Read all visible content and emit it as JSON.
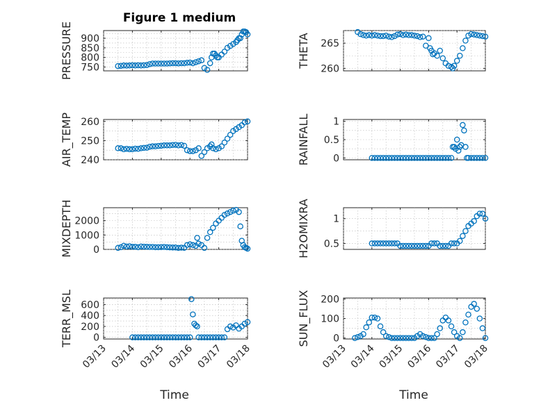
{
  "figure_title": "Figure 1 medium",
  "x_axis_label": "Time",
  "marker_color": "#0072BD",
  "chart_data": [
    {
      "type": "scatter",
      "ylabel": "PRESSURE",
      "title": "Figure 1 medium",
      "ylim": [
        730,
        940
      ],
      "yticks": [
        750,
        800,
        850,
        900
      ],
      "xlim": [
        0,
        5
      ],
      "x_tick_labels": [
        "03/13",
        "03/14",
        "03/15",
        "03/16",
        "03/17",
        "03/18"
      ],
      "xtick_labels_visible": false,
      "x": [
        0.5,
        0.6,
        0.7,
        0.8,
        0.9,
        1.0,
        1.1,
        1.2,
        1.3,
        1.4,
        1.5,
        1.6,
        1.7,
        1.8,
        1.9,
        2.0,
        2.1,
        2.2,
        2.3,
        2.4,
        2.5,
        2.6,
        2.7,
        2.8,
        2.9,
        3.0,
        3.1,
        3.2,
        3.3,
        3.4,
        3.5,
        3.6,
        3.7,
        3.75,
        3.8,
        3.85,
        3.9,
        3.95,
        4.0,
        4.1,
        4.2,
        4.3,
        4.4,
        4.5,
        4.6,
        4.65,
        4.7,
        4.75,
        4.8,
        4.85,
        4.9,
        4.95,
        5.0
      ],
      "y": [
        755,
        756,
        758,
        757,
        758,
        759,
        758,
        759,
        758,
        759,
        760,
        765,
        768,
        768,
        768,
        768,
        768,
        768,
        769,
        770,
        770,
        769,
        770,
        770,
        772,
        773,
        770,
        775,
        780,
        785,
        745,
        735,
        770,
        800,
        820,
        820,
        810,
        800,
        800,
        815,
        830,
        850,
        860,
        870,
        880,
        890,
        900,
        900,
        920,
        935,
        935,
        932,
        920
      ]
    },
    {
      "type": "scatter",
      "ylabel": "THETA",
      "ylim": [
        259.5,
        267.5
      ],
      "yticks": [
        260,
        265
      ],
      "xlim": [
        0,
        5
      ],
      "x_tick_labels": [
        "03/13",
        "03/14",
        "03/15",
        "03/16",
        "03/17",
        "03/18"
      ],
      "xtick_labels_visible": false,
      "x": [
        0.5,
        0.6,
        0.7,
        0.8,
        0.9,
        1.0,
        1.1,
        1.2,
        1.3,
        1.4,
        1.5,
        1.6,
        1.7,
        1.8,
        1.9,
        2.0,
        2.1,
        2.2,
        2.3,
        2.4,
        2.5,
        2.6,
        2.7,
        2.8,
        2.9,
        3.0,
        3.05,
        3.1,
        3.15,
        3.2,
        3.3,
        3.4,
        3.5,
        3.6,
        3.7,
        3.8,
        3.85,
        3.9,
        4.0,
        4.1,
        4.2,
        4.3,
        4.4,
        4.5,
        4.6,
        4.7,
        4.8,
        4.9,
        5.0
      ],
      "y": [
        267.2,
        266.8,
        266.6,
        266.5,
        266.6,
        266.5,
        266.6,
        266.5,
        266.4,
        266.4,
        266.5,
        266.3,
        266.2,
        266.4,
        266.7,
        266.8,
        266.6,
        266.7,
        266.6,
        266.6,
        266.5,
        266.4,
        266.2,
        266.3,
        264.5,
        266.0,
        264.0,
        263.5,
        262.8,
        263.0,
        262.5,
        263.5,
        262.0,
        261.0,
        260.5,
        260.3,
        260.0,
        260.5,
        261.5,
        262.5,
        264.0,
        265.5,
        266.5,
        266.8,
        266.7,
        266.6,
        266.5,
        266.4,
        266.3
      ]
    },
    {
      "type": "scatter",
      "ylabel": "AIR_TEMP",
      "ylim": [
        240,
        261
      ],
      "yticks": [
        240,
        250,
        260
      ],
      "xlim": [
        0,
        5
      ],
      "x_tick_labels": [
        "03/13",
        "03/14",
        "03/15",
        "03/16",
        "03/17",
        "03/18"
      ],
      "xtick_labels_visible": false,
      "x": [
        0.5,
        0.6,
        0.7,
        0.8,
        0.9,
        1.0,
        1.1,
        1.2,
        1.3,
        1.4,
        1.5,
        1.6,
        1.7,
        1.8,
        1.9,
        2.0,
        2.1,
        2.2,
        2.3,
        2.4,
        2.5,
        2.6,
        2.7,
        2.8,
        2.9,
        3.0,
        3.1,
        3.2,
        3.3,
        3.4,
        3.5,
        3.6,
        3.7,
        3.75,
        3.8,
        3.9,
        4.0,
        4.1,
        4.2,
        4.3,
        4.4,
        4.5,
        4.6,
        4.7,
        4.8,
        4.9,
        5.0
      ],
      "y": [
        246,
        246,
        245.5,
        245.7,
        245.5,
        245.5,
        245.8,
        245.7,
        246,
        246.2,
        246.3,
        246.8,
        247,
        247,
        247.2,
        247.3,
        247.5,
        247.5,
        247.5,
        247.7,
        247.8,
        247.5,
        247.7,
        247.3,
        245,
        244.5,
        244.5,
        245,
        246,
        242,
        244,
        246,
        247,
        248,
        246,
        245.5,
        246,
        247,
        249,
        251,
        253,
        255,
        256,
        257,
        258,
        259.5,
        260
      ]
    },
    {
      "type": "scatter",
      "ylabel": "RAINFALL",
      "ylim": [
        -0.05,
        1.05
      ],
      "yticks": [
        0,
        0.5,
        1
      ],
      "xlim": [
        0,
        5
      ],
      "x_tick_labels": [
        "03/13",
        "03/14",
        "03/15",
        "03/16",
        "03/17",
        "03/18"
      ],
      "xtick_labels_visible": false,
      "x": [
        1.0,
        1.1,
        1.2,
        1.3,
        1.4,
        1.5,
        1.6,
        1.7,
        1.8,
        1.9,
        2.0,
        2.1,
        2.2,
        2.3,
        2.4,
        2.5,
        2.6,
        2.7,
        2.8,
        2.9,
        3.0,
        3.1,
        3.2,
        3.3,
        3.4,
        3.5,
        3.6,
        3.7,
        3.8,
        3.85,
        3.9,
        3.95,
        4.0,
        4.05,
        4.1,
        4.15,
        4.2,
        4.25,
        4.3,
        4.35,
        4.4,
        4.5,
        4.6,
        4.7,
        4.8,
        4.9,
        5.0
      ],
      "y": [
        0,
        0,
        0,
        0,
        0,
        0,
        0,
        0,
        0,
        0,
        0,
        0,
        0,
        0,
        0,
        0,
        0,
        0,
        0,
        0,
        0,
        0,
        0,
        0,
        0,
        0,
        0,
        0,
        0,
        0.3,
        0.3,
        0.25,
        0.5,
        0.2,
        0.3,
        0.35,
        0.9,
        0.75,
        0.3,
        0.0,
        0,
        0,
        0,
        0,
        0,
        0,
        0
      ]
    },
    {
      "type": "scatter",
      "ylabel": "MIXDEPTH",
      "ylim": [
        0,
        2900
      ],
      "yticks": [
        0,
        1000,
        2000
      ],
      "xlim": [
        0,
        5
      ],
      "x_tick_labels": [
        "03/13",
        "03/14",
        "03/15",
        "03/16",
        "03/17",
        "03/18"
      ],
      "xtick_labels_visible": false,
      "x": [
        0.5,
        0.6,
        0.7,
        0.8,
        0.9,
        1.0,
        1.1,
        1.2,
        1.3,
        1.4,
        1.5,
        1.6,
        1.7,
        1.8,
        1.9,
        2.0,
        2.1,
        2.2,
        2.3,
        2.4,
        2.5,
        2.6,
        2.7,
        2.8,
        2.9,
        3.0,
        3.1,
        3.2,
        3.25,
        3.3,
        3.4,
        3.5,
        3.6,
        3.7,
        3.8,
        3.9,
        4.0,
        4.1,
        4.2,
        4.3,
        4.4,
        4.5,
        4.6,
        4.7,
        4.75,
        4.8,
        4.85,
        4.9,
        4.95,
        5.0
      ],
      "y": [
        100,
        150,
        250,
        200,
        220,
        180,
        180,
        150,
        200,
        190,
        180,
        170,
        170,
        150,
        150,
        160,
        170,
        150,
        140,
        130,
        130,
        100,
        120,
        110,
        300,
        350,
        300,
        250,
        800,
        400,
        300,
        100,
        800,
        1200,
        1500,
        1800,
        2000,
        2200,
        2400,
        2500,
        2600,
        2700,
        2750,
        2600,
        1600,
        600,
        300,
        150,
        100,
        50
      ]
    },
    {
      "type": "scatter",
      "ylabel": "H2OMIXRA",
      "ylim": [
        0.38,
        1.22
      ],
      "yticks": [
        0.5,
        1
      ],
      "xlim": [
        0,
        5
      ],
      "x_tick_labels": [
        "03/13",
        "03/14",
        "03/15",
        "03/16",
        "03/17",
        "03/18"
      ],
      "xtick_labels_visible": false,
      "x": [
        1.0,
        1.1,
        1.2,
        1.3,
        1.4,
        1.5,
        1.6,
        1.7,
        1.8,
        1.9,
        2.0,
        2.1,
        2.2,
        2.3,
        2.4,
        2.5,
        2.6,
        2.7,
        2.8,
        2.9,
        3.0,
        3.1,
        3.2,
        3.3,
        3.4,
        3.5,
        3.6,
        3.7,
        3.8,
        3.9,
        4.0,
        4.1,
        4.2,
        4.3,
        4.4,
        4.5,
        4.6,
        4.7,
        4.8,
        4.9,
        5.0
      ],
      "y": [
        0.5,
        0.5,
        0.5,
        0.5,
        0.5,
        0.5,
        0.5,
        0.5,
        0.5,
        0.5,
        0.45,
        0.45,
        0.45,
        0.45,
        0.45,
        0.45,
        0.45,
        0.45,
        0.45,
        0.45,
        0.45,
        0.5,
        0.5,
        0.5,
        0.45,
        0.45,
        0.45,
        0.45,
        0.5,
        0.5,
        0.5,
        0.55,
        0.65,
        0.75,
        0.85,
        0.9,
        0.95,
        1.05,
        1.1,
        1.1,
        1.0
      ]
    },
    {
      "type": "scatter",
      "ylabel": "TERR_MSL",
      "ylim": [
        -30,
        720
      ],
      "yticks": [
        0,
        200,
        400,
        600
      ],
      "xlim": [
        0,
        5
      ],
      "x_tick_labels": [
        "03/13",
        "03/14",
        "03/15",
        "03/16",
        "03/17",
        "03/18"
      ],
      "xtick_labels_visible": true,
      "x": [
        1.0,
        1.1,
        1.2,
        1.3,
        1.4,
        1.5,
        1.6,
        1.7,
        1.8,
        1.9,
        2.0,
        2.1,
        2.2,
        2.3,
        2.4,
        2.5,
        2.6,
        2.7,
        2.8,
        2.9,
        3.0,
        3.05,
        3.1,
        3.15,
        3.2,
        3.25,
        3.3,
        3.4,
        3.5,
        3.6,
        3.7,
        3.8,
        3.9,
        4.0,
        4.1,
        4.2,
        4.3,
        4.4,
        4.5,
        4.6,
        4.7,
        4.8,
        4.9,
        5.0
      ],
      "y": [
        0,
        0,
        0,
        0,
        0,
        0,
        0,
        0,
        0,
        0,
        0,
        0,
        0,
        0,
        0,
        0,
        0,
        0,
        0,
        0,
        0,
        700,
        420,
        250,
        220,
        200,
        0,
        0,
        0,
        0,
        0,
        0,
        0,
        0,
        0,
        0,
        150,
        200,
        180,
        220,
        160,
        200,
        250,
        280
      ]
    },
    {
      "type": "scatter",
      "ylabel": "SUN_FLUX",
      "ylim": [
        -5,
        205
      ],
      "yticks": [
        0,
        100,
        200
      ],
      "xlim": [
        0,
        5
      ],
      "x_tick_labels": [
        "03/13",
        "03/14",
        "03/15",
        "03/16",
        "03/17",
        "03/18"
      ],
      "xtick_labels_visible": true,
      "x": [
        0.4,
        0.5,
        0.6,
        0.7,
        0.8,
        0.9,
        1.0,
        1.1,
        1.2,
        1.3,
        1.4,
        1.5,
        1.6,
        1.7,
        1.8,
        1.9,
        2.0,
        2.1,
        2.2,
        2.3,
        2.4,
        2.5,
        2.6,
        2.7,
        2.8,
        2.9,
        3.0,
        3.1,
        3.2,
        3.3,
        3.4,
        3.5,
        3.6,
        3.7,
        3.8,
        3.9,
        4.0,
        4.1,
        4.2,
        4.3,
        4.4,
        4.5,
        4.6,
        4.7,
        4.8,
        4.9,
        5.0
      ],
      "y": [
        0,
        5,
        10,
        20,
        55,
        80,
        105,
        105,
        100,
        60,
        30,
        10,
        5,
        0,
        0,
        0,
        0,
        0,
        0,
        0,
        0,
        0,
        10,
        20,
        10,
        5,
        0,
        0,
        0,
        20,
        50,
        90,
        105,
        90,
        60,
        30,
        10,
        0,
        30,
        80,
        120,
        160,
        175,
        150,
        100,
        50,
        0
      ]
    }
  ]
}
